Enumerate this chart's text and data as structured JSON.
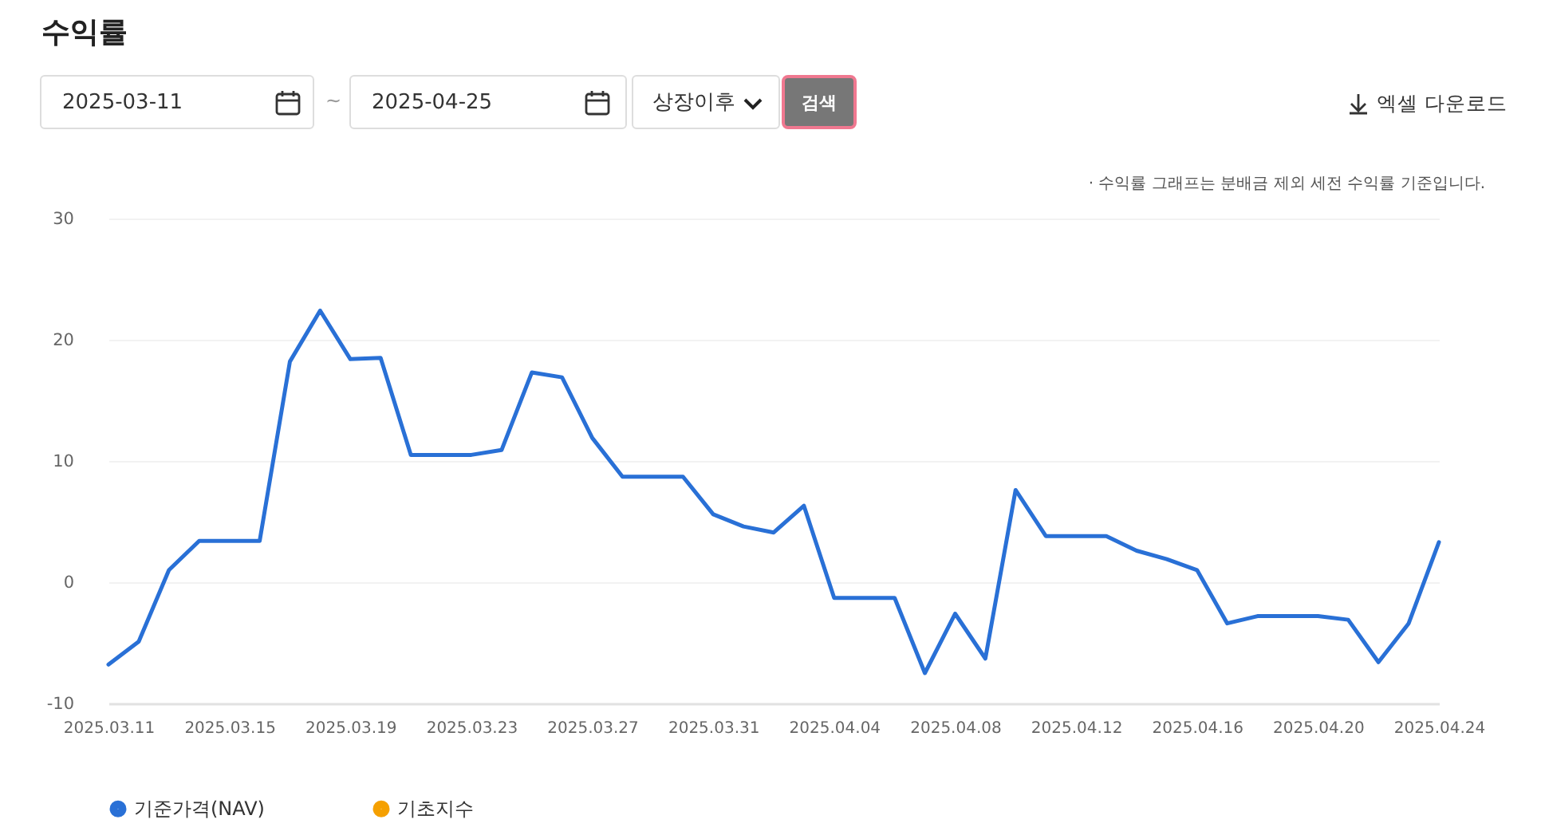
{
  "chart_data": {
    "type": "line",
    "title": "수익률",
    "annotations": [
      "2025-03-11",
      "~",
      "2025-04-25",
      "상장이후",
      "검색",
      "엑셀 다운로드",
      "· 수익률 그래프는 분배금 제외 세전 수익률 기준입니다."
    ],
    "x": [
      "2025-03-11",
      "2025-03-12",
      "2025-03-13",
      "2025-03-14",
      "2025-03-15",
      "2025-03-16",
      "2025-03-17",
      "2025-03-18",
      "2025-03-19",
      "2025-03-20",
      "2025-03-21",
      "2025-03-22",
      "2025-03-23",
      "2025-03-24",
      "2025-03-25",
      "2025-03-26",
      "2025-03-27",
      "2025-03-28",
      "2025-03-29",
      "2025-03-30",
      "2025-03-31",
      "2025-04-01",
      "2025-04-02",
      "2025-04-03",
      "2025-04-04",
      "2025-04-05",
      "2025-04-06",
      "2025-04-07",
      "2025-04-08",
      "2025-04-09",
      "2025-04-10",
      "2025-04-11",
      "2025-04-12",
      "2025-04-13",
      "2025-04-14",
      "2025-04-15",
      "2025-04-16",
      "2025-04-17",
      "2025-04-18",
      "2025-04-19",
      "2025-04-20",
      "2025-04-21",
      "2025-04-22",
      "2025-04-23",
      "2025-04-24"
    ],
    "series": [
      {
        "name": "기준가격(NAV)",
        "color": "#2970d6",
        "values": [
          -6.8,
          -4.9,
          1.0,
          3.4,
          3.4,
          3.4,
          18.2,
          22.4,
          18.4,
          18.5,
          10.5,
          10.5,
          10.5,
          10.9,
          17.3,
          16.9,
          11.9,
          8.7,
          8.7,
          8.7,
          5.6,
          4.6,
          4.1,
          6.3,
          -1.3,
          -1.3,
          -1.3,
          -7.5,
          -2.6,
          -6.3,
          7.6,
          3.8,
          3.8,
          3.8,
          2.6,
          1.9,
          1.0,
          -3.4,
          -2.8,
          -2.8,
          -2.8,
          -3.1,
          -6.6,
          -3.4,
          3.3
        ]
      },
      {
        "name": "기초지수",
        "color": "#f5a000",
        "values": [
          null,
          null,
          null,
          null,
          null,
          null,
          null,
          null,
          null,
          null,
          null,
          null,
          null,
          null,
          null,
          null,
          null,
          null,
          null,
          null,
          null,
          null,
          null,
          null,
          null,
          null,
          null,
          null,
          null,
          null,
          null,
          null,
          null,
          null,
          null,
          null,
          null,
          null,
          null,
          null,
          null,
          null,
          null,
          null,
          null
        ]
      }
    ],
    "xlim": [
      "2025-03-11",
      "2025-04-24"
    ],
    "xticks": [
      {
        "value": "2025-03-11",
        "label": "2025.03.11"
      },
      {
        "value": "2025-03-15",
        "label": "2025.03.15"
      },
      {
        "value": "2025-03-19",
        "label": "2025.03.19"
      },
      {
        "value": "2025-03-23",
        "label": "2025.03.23"
      },
      {
        "value": "2025-03-27",
        "label": "2025.03.27"
      },
      {
        "value": "2025-03-31",
        "label": "2025.03.31"
      },
      {
        "value": "2025-04-04",
        "label": "2025.04.04"
      },
      {
        "value": "2025-04-08",
        "label": "2025.04.08"
      },
      {
        "value": "2025-04-12",
        "label": "2025.04.12"
      },
      {
        "value": "2025-04-16",
        "label": "2025.04.16"
      },
      {
        "value": "2025-04-20",
        "label": "2025.04.20"
      },
      {
        "value": "2025-04-24",
        "label": "2025.04.24"
      }
    ],
    "ylim": [
      -10,
      30
    ],
    "yticks": [
      -10,
      0,
      10,
      20,
      30
    ],
    "grid": "y",
    "legend": "bottom",
    "marker": "none",
    "line_style": "solid"
  }
}
